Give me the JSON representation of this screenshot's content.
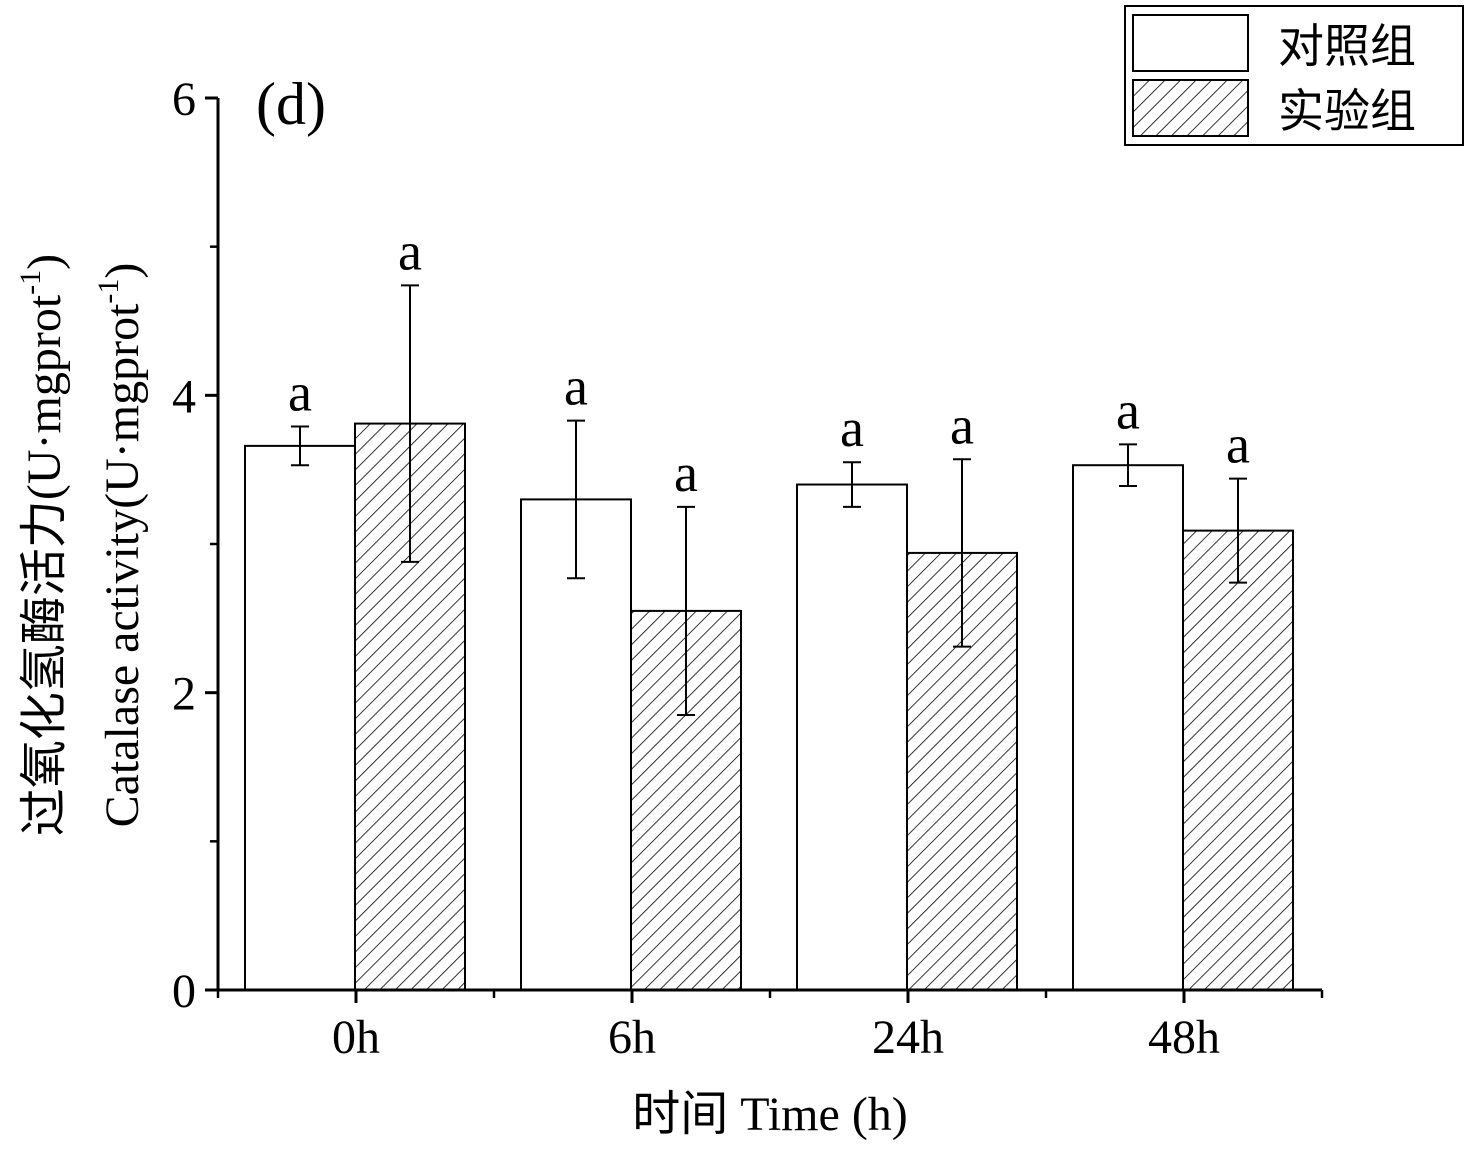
{
  "chart_data": {
    "type": "bar",
    "panel_label": "(d)",
    "xlabel": "时间 Time (h)",
    "ylabel_cn": "过氧化氢酶活力(U·mgprot",
    "ylabel_en": "Catalase activity(U·mgprot",
    "ylabel_sup": "-1",
    "ylabel_close": ")",
    "categories": [
      "0h",
      "6h",
      "24h",
      "48h"
    ],
    "ylim": [
      0,
      6
    ],
    "yticks": [
      0,
      2,
      4,
      6
    ],
    "y_minor_ticks": [
      1,
      3,
      5
    ],
    "legend_position": "top-right",
    "series": [
      {
        "name": "对照组",
        "fill": "#ffffff",
        "pattern": "none",
        "values": [
          3.66,
          3.3,
          3.4,
          3.53
        ],
        "errors": [
          0.13,
          0.53,
          0.15,
          0.14
        ],
        "labels": [
          "a",
          "a",
          "a",
          "a"
        ]
      },
      {
        "name": "实验组",
        "fill": "#ffffff",
        "pattern": "diagonal-hatch",
        "values": [
          3.81,
          2.55,
          2.94,
          3.09
        ],
        "errors": [
          0.93,
          0.7,
          0.63,
          0.35
        ],
        "labels": [
          "a",
          "a",
          "a",
          "a"
        ]
      }
    ]
  }
}
